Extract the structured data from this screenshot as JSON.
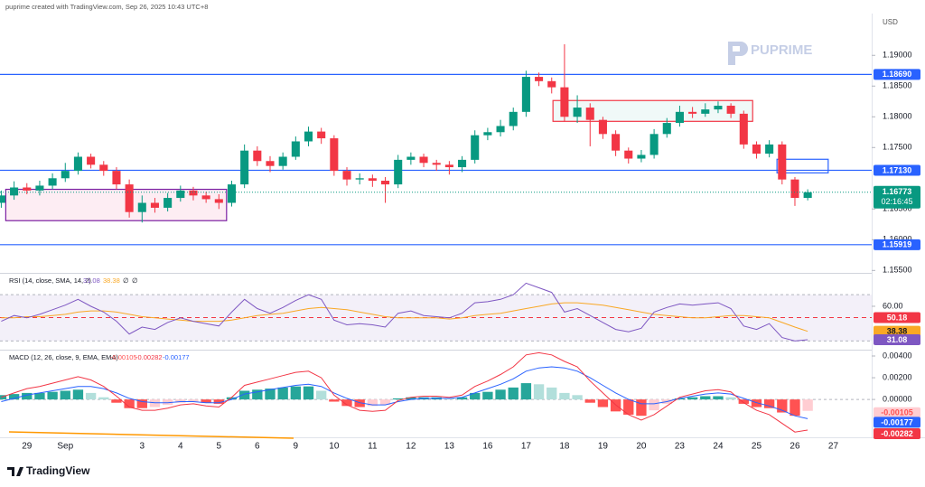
{
  "header": {
    "caption": "puprime created with TradingView.com, Sep 26, 2025 10:43 UTC+8",
    "brand": "PUPRIME",
    "currency": "USD",
    "footer": "TradingView"
  },
  "chart_data": [
    {
      "type": "candlestick",
      "open": [
        1.166,
        1.1672,
        1.1685,
        1.168,
        1.1688,
        1.17,
        1.1712,
        1.1735,
        1.1722,
        1.1712,
        1.169,
        1.1645,
        1.166,
        1.1652,
        1.1668,
        1.168,
        1.1672,
        1.1666,
        1.166,
        1.169,
        1.1745,
        1.1728,
        1.172,
        1.1735,
        1.176,
        1.1776,
        1.1765,
        1.1712,
        1.1698,
        1.17,
        1.1696,
        1.169,
        1.173,
        1.1735,
        1.1725,
        1.1722,
        1.1718,
        1.173,
        1.177,
        1.1775,
        1.1785,
        1.1808,
        1.1865,
        1.1858,
        1.1848,
        1.18,
        1.1815,
        1.1795,
        1.1772,
        1.1745,
        1.1732,
        1.1738,
        1.1772,
        1.179,
        1.1808,
        1.1805,
        1.1812,
        1.1818,
        1.1805,
        1.1755,
        1.174,
        1.1755,
        1.1698,
        1.1668
      ],
      "high": [
        1.168,
        1.1695,
        1.1692,
        1.1696,
        1.1708,
        1.1725,
        1.1742,
        1.174,
        1.1728,
        1.1718,
        1.1698,
        1.1672,
        1.1668,
        1.1676,
        1.1688,
        1.1686,
        1.1678,
        1.1674,
        1.1696,
        1.1755,
        1.1752,
        1.1736,
        1.1742,
        1.1768,
        1.1784,
        1.1782,
        1.177,
        1.1718,
        1.1708,
        1.1706,
        1.1702,
        1.1738,
        1.1742,
        1.174,
        1.173,
        1.1728,
        1.1736,
        1.1778,
        1.1782,
        1.1795,
        1.1815,
        1.1875,
        1.1872,
        1.1864,
        1.1918,
        1.1835,
        1.1822,
        1.18,
        1.1778,
        1.175,
        1.1746,
        1.178,
        1.1798,
        1.1818,
        1.1816,
        1.1822,
        1.1825,
        1.1822,
        1.181,
        1.176,
        1.1762,
        1.176,
        1.1702,
        1.1682
      ],
      "low": [
        1.1652,
        1.1665,
        1.1674,
        1.1672,
        1.1682,
        1.1694,
        1.1706,
        1.1716,
        1.1704,
        1.1682,
        1.1636,
        1.1628,
        1.1644,
        1.1646,
        1.1662,
        1.1664,
        1.166,
        1.165,
        1.1654,
        1.1684,
        1.172,
        1.171,
        1.1714,
        1.173,
        1.1752,
        1.1756,
        1.1704,
        1.1688,
        1.169,
        1.1686,
        1.166,
        1.1684,
        1.1722,
        1.1718,
        1.1712,
        1.1706,
        1.171,
        1.1724,
        1.1762,
        1.1768,
        1.1778,
        1.18,
        1.185,
        1.1838,
        1.1792,
        1.179,
        1.1752,
        1.1764,
        1.1736,
        1.1724,
        1.1726,
        1.1732,
        1.1766,
        1.1784,
        1.1798,
        1.18,
        1.1806,
        1.1798,
        1.1748,
        1.1732,
        1.1734,
        1.169,
        1.1655,
        1.1664
      ],
      "close": [
        1.1672,
        1.1685,
        1.168,
        1.1688,
        1.17,
        1.1712,
        1.1735,
        1.1722,
        1.1712,
        1.169,
        1.1645,
        1.166,
        1.1652,
        1.1668,
        1.168,
        1.1672,
        1.1666,
        1.166,
        1.169,
        1.1745,
        1.1728,
        1.172,
        1.1735,
        1.176,
        1.1776,
        1.1765,
        1.1712,
        1.1698,
        1.17,
        1.1696,
        1.169,
        1.173,
        1.1735,
        1.1725,
        1.1722,
        1.1718,
        1.173,
        1.177,
        1.1775,
        1.1785,
        1.1808,
        1.1865,
        1.1858,
        1.1848,
        1.18,
        1.1815,
        1.1795,
        1.1772,
        1.1745,
        1.1732,
        1.1738,
        1.1772,
        1.179,
        1.1808,
        1.1805,
        1.1812,
        1.1818,
        1.1805,
        1.1755,
        1.174,
        1.1755,
        1.1698,
        1.1668,
        1.16773
      ],
      "up_color": "#089981",
      "down_color": "#f23645",
      "xlim": [
        -0.1,
        68
      ],
      "xticks": [
        {
          "value": 2,
          "label": "29"
        },
        {
          "value": 5,
          "label": "Sep"
        },
        {
          "value": 11,
          "label": "3"
        },
        {
          "value": 14,
          "label": "4"
        },
        {
          "value": 17,
          "label": "5"
        },
        {
          "value": 20,
          "label": "6"
        },
        {
          "value": 23,
          "label": "9"
        },
        {
          "value": 26,
          "label": "10"
        },
        {
          "value": 29,
          "label": "11"
        },
        {
          "value": 32,
          "label": "12"
        },
        {
          "value": 35,
          "label": "13"
        },
        {
          "value": 38,
          "label": "16"
        },
        {
          "value": 41,
          "label": "17"
        },
        {
          "value": 44,
          "label": "18"
        },
        {
          "value": 47,
          "label": "19"
        },
        {
          "value": 50,
          "label": "20"
        },
        {
          "value": 53,
          "label": "23"
        },
        {
          "value": 56,
          "label": "24"
        },
        {
          "value": 59,
          "label": "25"
        },
        {
          "value": 62,
          "label": "26"
        },
        {
          "value": 65,
          "label": "27"
        }
      ],
      "ylim": [
        1.1549,
        1.1968
      ],
      "yticks": [
        {
          "value": 1.19,
          "label": "1.19000"
        },
        {
          "value": 1.185,
          "label": "1.18500"
        },
        {
          "value": 1.18,
          "label": "1.18000"
        },
        {
          "value": 1.175,
          "label": "1.17500"
        },
        {
          "value": 1.165,
          "label": "1.16500"
        },
        {
          "value": 1.16,
          "label": "1.16000"
        },
        {
          "value": 1.155,
          "label": "1.15500"
        }
      ],
      "levels": [
        {
          "value": 1.1869,
          "label": "1.18690"
        },
        {
          "value": 1.1713,
          "label": "1.17130"
        },
        1.15919
      ],
      "level_color": "#2962ff",
      "zones": [
        {
          "x": [
            0.35,
            17.6
          ],
          "y": [
            1.1631,
            1.1682
          ],
          "fill": "rgba(233,30,99,0.08)",
          "stroke": "#7b1fa2"
        },
        {
          "x": [
            43.1,
            58.7
          ],
          "y": [
            1.17926,
            1.18265
          ],
          "fill": "rgba(8,153,129,0.06)",
          "stroke": "#f23645"
        },
        {
          "x": [
            60.6,
            64.6
          ],
          "y": [
            1.17088,
            1.17309
          ],
          "fill": "none",
          "stroke": "#2962ff"
        }
      ],
      "countdown": "02:16:45"
    },
    {
      "type": "rsi",
      "title": "RSI (14, close, SMA, 14, 2)",
      "series": [
        {
          "color": "#7e57c2",
          "values": [
            47,
            52,
            50,
            53,
            57,
            61,
            66,
            60,
            55,
            47,
            36,
            42,
            40,
            46,
            50,
            47,
            45,
            43,
            55,
            66,
            58,
            54,
            59,
            65,
            70,
            66,
            48,
            44,
            45,
            44,
            42,
            54,
            56,
            52,
            51,
            50,
            54,
            63,
            64,
            66,
            70,
            80,
            76,
            72,
            55,
            58,
            52,
            46,
            40,
            38,
            41,
            55,
            59,
            62,
            61,
            62,
            63,
            58,
            43,
            40,
            45,
            33,
            30,
            31.08
          ]
        },
        {
          "color": "#f9a825",
          "values": [
            50,
            50,
            51,
            51,
            52,
            53,
            55,
            56,
            56,
            55,
            53,
            51,
            50,
            49,
            48,
            47,
            47,
            47,
            48,
            50,
            52,
            53,
            54,
            56,
            58,
            59,
            58,
            57,
            55,
            53,
            51,
            50,
            50,
            50,
            50,
            49,
            50,
            52,
            53,
            54,
            56,
            58,
            60,
            62,
            63,
            63,
            62,
            61,
            59,
            57,
            55,
            53,
            52,
            51,
            50,
            50,
            51,
            52,
            52,
            51,
            50,
            46,
            42,
            38.38
          ]
        }
      ],
      "band": [
        30,
        70
      ],
      "band_value": 50.18,
      "band_color": "#f23645",
      "extras": [
        "∅",
        "∅"
      ],
      "ylim": [
        22.5,
        88.1
      ],
      "yticks": [
        {
          "value": 60,
          "label": "60.00"
        }
      ]
    },
    {
      "type": "macd",
      "title": "MACD (12, 26, close, 9, EMA, EMA)",
      "histogram": [
        0.0004,
        0.0005,
        0.0006,
        0.0006,
        0.0007,
        0.0008,
        0.0009,
        0.0006,
        0.0002,
        -0.0003,
        -0.0008,
        -0.0008,
        -0.0007,
        -0.0005,
        -0.0003,
        -0.0002,
        -0.0003,
        -0.0004,
        0.0002,
        0.0008,
        0.0009,
        0.001,
        0.0011,
        0.0012,
        0.0012,
        0.0008,
        -0.0002,
        -0.0006,
        -0.0007,
        -0.0006,
        -0.0005,
        0.0001,
        0.0002,
        0.0002,
        0.0002,
        0.0001,
        0.0002,
        0.0006,
        0.0007,
        0.0009,
        0.0011,
        0.0015,
        0.0014,
        0.0011,
        0.0006,
        0.0004,
        -0.0003,
        -0.0007,
        -0.0011,
        -0.0014,
        -0.0015,
        -0.001,
        -0.0004,
        0.0001,
        0.0002,
        0.0003,
        0.0003,
        0.0002,
        -0.0004,
        -0.0007,
        -0.0008,
        -0.0012,
        -0.0015,
        -0.00105
      ],
      "hist_colors": [
        "#26a69a",
        "#b2dfdb",
        "#ffcdd2",
        "#ff5252"
      ],
      "series": [
        {
          "color": "#2962ff",
          "values": [
            -0.0002,
            0.0001,
            0.0004,
            0.0006,
            0.0008,
            0.001,
            0.0012,
            0.0012,
            0.001,
            0.0006,
            0.0001,
            -0.0002,
            -0.0003,
            -0.0003,
            -0.0002,
            -0.0002,
            -0.0003,
            -0.0003,
            0,
            0.0005,
            0.0007,
            0.0009,
            0.0011,
            0.0013,
            0.0014,
            0.0012,
            0.0006,
            0.0001,
            -0.0003,
            -0.0005,
            -0.0005,
            -0.0002,
            0,
            0.0001,
            0.0001,
            0.0001,
            0.0002,
            0.0006,
            0.001,
            0.0014,
            0.0019,
            0.0026,
            0.0029,
            0.003,
            0.0029,
            0.0026,
            0.002,
            0.0013,
            0.0006,
            0,
            -0.0004,
            -0.0004,
            -0.0002,
            0.0001,
            0.0003,
            0.0005,
            0.0006,
            0.0005,
            0.0001,
            -0.0003,
            -0.0006,
            -0.001,
            -0.0015,
            -0.00177
          ]
        },
        {
          "color": "#f23645",
          "values": [
            0.0002,
            0.0006,
            0.001,
            0.0012,
            0.0015,
            0.0018,
            0.0021,
            0.0018,
            0.0012,
            0.0003,
            -0.0007,
            -0.001,
            -0.001,
            -0.0008,
            -0.0005,
            -0.0004,
            -0.0006,
            -0.0007,
            0.0002,
            0.0013,
            0.0016,
            0.0019,
            0.0022,
            0.0025,
            0.0026,
            0.002,
            0.0004,
            -0.0005,
            -0.001,
            -0.0011,
            -0.001,
            -0.0001,
            0.0002,
            0.0003,
            0.0003,
            0.0002,
            0.0004,
            0.0012,
            0.0017,
            0.0023,
            0.003,
            0.0041,
            0.0043,
            0.0041,
            0.0035,
            0.003,
            0.0017,
            0.0006,
            -0.0005,
            -0.0014,
            -0.0019,
            -0.0014,
            -0.0006,
            0.0002,
            0.0005,
            0.0008,
            0.0009,
            0.0007,
            -0.0003,
            -0.001,
            -0.0014,
            -0.0022,
            -0.003,
            -0.00282
          ]
        }
      ],
      "ylim": [
        -0.0034,
        0.0045
      ],
      "yticks": [
        {
          "value": 0.004,
          "label": "0.00400"
        },
        {
          "value": 0.002,
          "label": "0.00200"
        },
        {
          "value": 0,
          "label": "0.00000"
        }
      ]
    }
  ]
}
